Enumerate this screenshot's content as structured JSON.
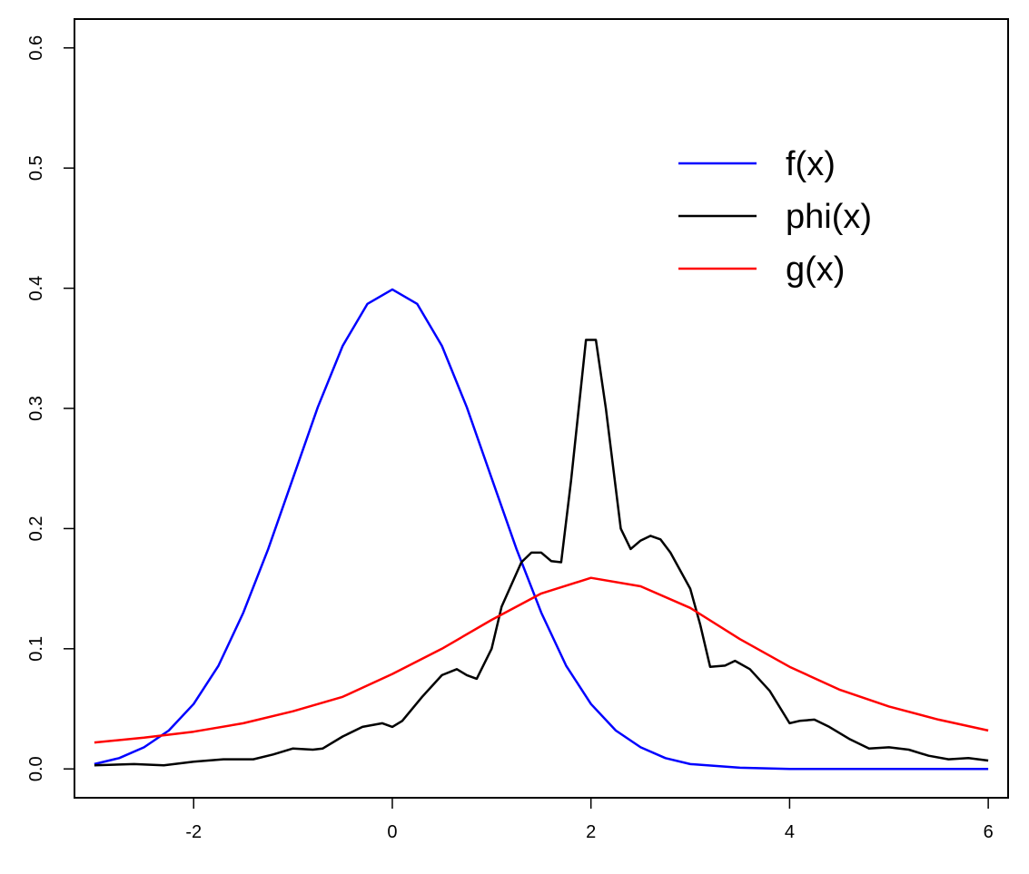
{
  "chart_data": {
    "type": "line",
    "title": "",
    "xlabel": "",
    "ylabel": "",
    "xlim": [
      -3.2,
      6.2
    ],
    "ylim": [
      -0.024,
      0.624
    ],
    "x_ticks": [
      -2,
      0,
      2,
      4,
      6
    ],
    "x_tick_labels": [
      "-2",
      "0",
      "2",
      "4",
      "6"
    ],
    "y_ticks": [
      0.0,
      0.1,
      0.2,
      0.3,
      0.4,
      0.5,
      0.6
    ],
    "y_tick_labels": [
      "0.0",
      "0.1",
      "0.2",
      "0.3",
      "0.4",
      "0.5",
      "0.6"
    ],
    "grid": false,
    "legend_position": "top-right",
    "series": [
      {
        "name": "f(x)",
        "color": "#0000ff",
        "points": [
          [
            -3.0,
            0.004
          ],
          [
            -2.75,
            0.009
          ],
          [
            -2.5,
            0.018
          ],
          [
            -2.25,
            0.032
          ],
          [
            -2.0,
            0.054
          ],
          [
            -1.75,
            0.086
          ],
          [
            -1.5,
            0.13
          ],
          [
            -1.25,
            0.183
          ],
          [
            -1.0,
            0.242
          ],
          [
            -0.75,
            0.301
          ],
          [
            -0.5,
            0.352
          ],
          [
            -0.25,
            0.387
          ],
          [
            0.0,
            0.399
          ],
          [
            0.25,
            0.387
          ],
          [
            0.5,
            0.352
          ],
          [
            0.75,
            0.301
          ],
          [
            1.0,
            0.242
          ],
          [
            1.25,
            0.183
          ],
          [
            1.5,
            0.13
          ],
          [
            1.75,
            0.086
          ],
          [
            2.0,
            0.054
          ],
          [
            2.25,
            0.032
          ],
          [
            2.5,
            0.018
          ],
          [
            2.75,
            0.009
          ],
          [
            3.0,
            0.004
          ],
          [
            3.5,
            0.001
          ],
          [
            4.0,
            0.0
          ],
          [
            5.0,
            0.0
          ],
          [
            6.0,
            0.0
          ]
        ]
      },
      {
        "name": "phi(x)",
        "color": "#000000",
        "points": [
          [
            -3.0,
            0.003
          ],
          [
            -2.6,
            0.004
          ],
          [
            -2.3,
            0.003
          ],
          [
            -2.0,
            0.006
          ],
          [
            -1.7,
            0.008
          ],
          [
            -1.4,
            0.008
          ],
          [
            -1.2,
            0.012
          ],
          [
            -1.0,
            0.017
          ],
          [
            -0.8,
            0.016
          ],
          [
            -0.7,
            0.017
          ],
          [
            -0.5,
            0.027
          ],
          [
            -0.3,
            0.035
          ],
          [
            -0.1,
            0.038
          ],
          [
            0.0,
            0.035
          ],
          [
            0.1,
            0.04
          ],
          [
            0.3,
            0.06
          ],
          [
            0.5,
            0.078
          ],
          [
            0.65,
            0.083
          ],
          [
            0.75,
            0.078
          ],
          [
            0.85,
            0.075
          ],
          [
            1.0,
            0.1
          ],
          [
            1.1,
            0.135
          ],
          [
            1.3,
            0.172
          ],
          [
            1.4,
            0.18
          ],
          [
            1.5,
            0.18
          ],
          [
            1.6,
            0.173
          ],
          [
            1.7,
            0.172
          ],
          [
            1.8,
            0.24
          ],
          [
            1.95,
            0.357
          ],
          [
            2.05,
            0.357
          ],
          [
            2.15,
            0.3
          ],
          [
            2.3,
            0.2
          ],
          [
            2.4,
            0.183
          ],
          [
            2.5,
            0.19
          ],
          [
            2.6,
            0.194
          ],
          [
            2.7,
            0.191
          ],
          [
            2.8,
            0.18
          ],
          [
            3.0,
            0.15
          ],
          [
            3.1,
            0.12
          ],
          [
            3.2,
            0.085
          ],
          [
            3.35,
            0.086
          ],
          [
            3.45,
            0.09
          ],
          [
            3.6,
            0.083
          ],
          [
            3.8,
            0.065
          ],
          [
            4.0,
            0.038
          ],
          [
            4.1,
            0.04
          ],
          [
            4.25,
            0.041
          ],
          [
            4.4,
            0.035
          ],
          [
            4.6,
            0.025
          ],
          [
            4.8,
            0.017
          ],
          [
            5.0,
            0.018
          ],
          [
            5.2,
            0.016
          ],
          [
            5.4,
            0.011
          ],
          [
            5.6,
            0.008
          ],
          [
            5.8,
            0.009
          ],
          [
            6.0,
            0.007
          ]
        ]
      },
      {
        "name": "g(x)",
        "color": "#ff0000",
        "points": [
          [
            -3.0,
            0.022
          ],
          [
            -2.5,
            0.026
          ],
          [
            -2.0,
            0.031
          ],
          [
            -1.5,
            0.038
          ],
          [
            -1.0,
            0.048
          ],
          [
            -0.5,
            0.06
          ],
          [
            0.0,
            0.079
          ],
          [
            0.5,
            0.1
          ],
          [
            1.0,
            0.124
          ],
          [
            1.5,
            0.146
          ],
          [
            2.0,
            0.159
          ],
          [
            2.5,
            0.152
          ],
          [
            3.0,
            0.134
          ],
          [
            3.5,
            0.108
          ],
          [
            4.0,
            0.085
          ],
          [
            4.5,
            0.066
          ],
          [
            5.0,
            0.052
          ],
          [
            5.5,
            0.041
          ],
          [
            6.0,
            0.032
          ]
        ]
      }
    ]
  }
}
